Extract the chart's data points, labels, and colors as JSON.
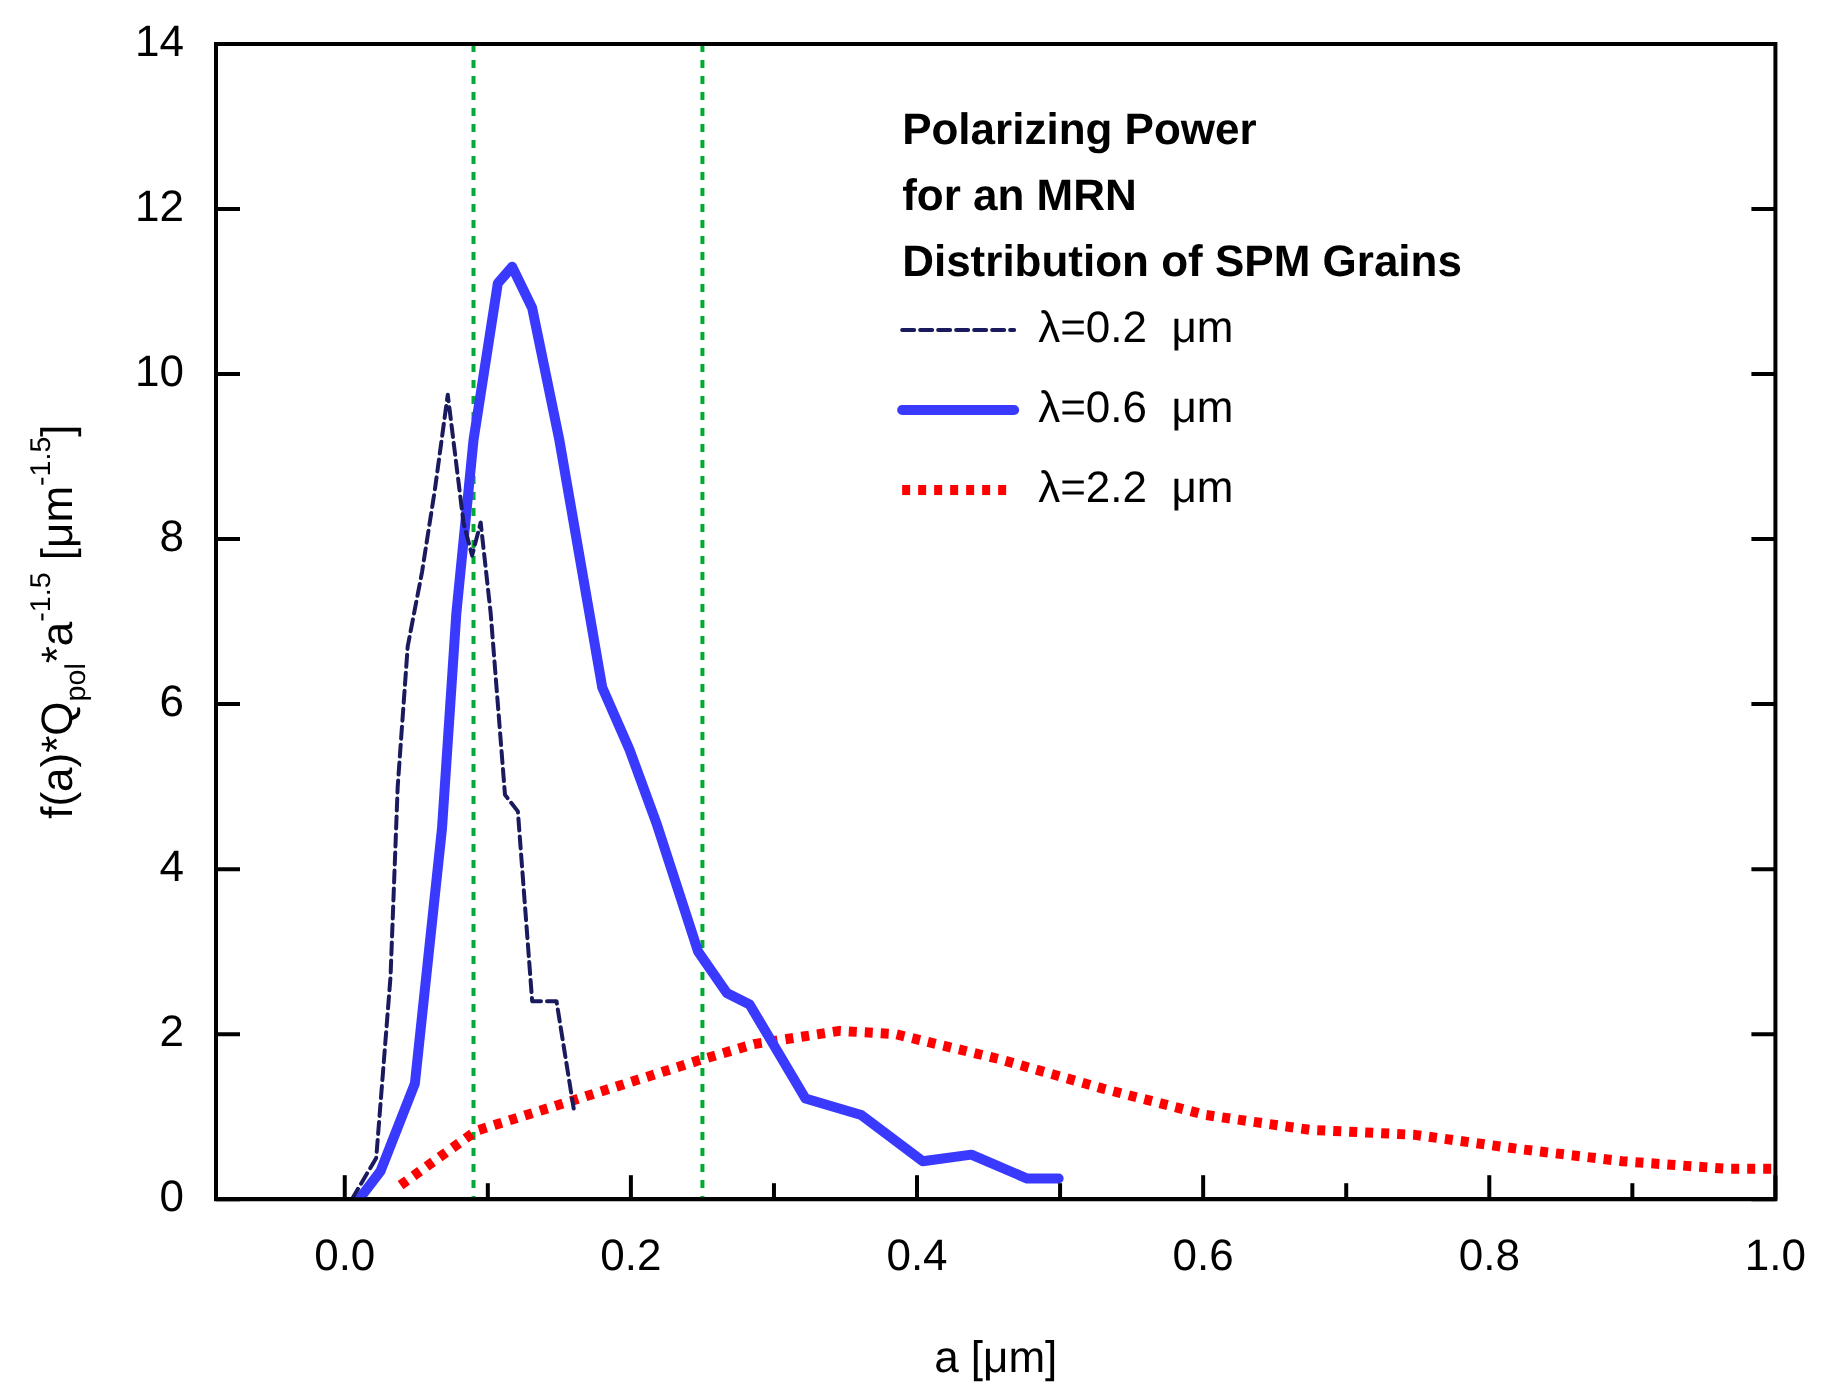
{
  "chart_data": {
    "type": "line",
    "xlabel": "a [μm]",
    "ylabel": "f(a)*Q$_{pol}$*a$^{-1.5}$ [μm$^{-1.5}$]",
    "legend_title": "Polarizing Power\nfor an MRN\nDistribution of SPM Grains",
    "legend": "top right",
    "grid": false,
    "marker": "none",
    "xlim": [
      -0.09,
      1.0
    ],
    "ylim": [
      0,
      14
    ],
    "xticks": [
      {
        "value": 0,
        "label": "0.0"
      },
      {
        "value": 0.1,
        "label": null
      },
      0.2,
      {
        "value": 0.3,
        "label": null
      },
      0.4,
      {
        "value": 0.5,
        "label": null
      },
      0.6,
      {
        "value": 0.7,
        "label": null
      },
      0.8,
      {
        "value": 0.9,
        "label": null
      },
      {
        "value": 1.0,
        "label": "1.0"
      }
    ],
    "yticks": [
      0,
      2,
      4,
      6,
      8,
      10,
      12,
      14
    ],
    "ref_lines": [
      {
        "axis": "x",
        "value": 0.09,
        "color": "#00aa33",
        "line_style": "dotted"
      },
      {
        "axis": "x",
        "value": 0.25,
        "color": "#00aa33",
        "line_style": "dotted"
      }
    ],
    "series": [
      {
        "name": "λ=0.2  μm",
        "color": "#1a1a5e",
        "line_style": "dashed",
        "x": [
          0.005,
          0.022,
          0.032,
          0.037,
          0.044,
          0.054,
          0.063,
          0.072,
          0.083,
          0.089,
          0.095,
          0.102,
          0.112,
          0.121,
          0.131,
          0.138,
          0.148,
          0.16
        ],
        "values": [
          0,
          0.5,
          2.7,
          5.0,
          6.7,
          7.6,
          8.6,
          9.75,
          8.2,
          7.8,
          8.2,
          7.1,
          4.9,
          4.7,
          2.4,
          2.4,
          2.4,
          1.1
        ]
      },
      {
        "name": "λ=0.6  μm",
        "color": "#3a3aff",
        "line_style": "solid",
        "x": [
          0.01,
          0.025,
          0.049,
          0.068,
          0.078,
          0.09,
          0.107,
          0.117,
          0.131,
          0.15,
          0.165,
          0.18,
          0.199,
          0.218,
          0.247,
          0.267,
          0.283,
          0.322,
          0.361,
          0.404,
          0.438,
          0.477,
          0.499
        ],
        "values": [
          0,
          0.34,
          1.4,
          4.5,
          7.1,
          9.2,
          11.1,
          11.3,
          10.8,
          9.2,
          7.7,
          6.2,
          5.45,
          4.55,
          3.0,
          2.5,
          2.36,
          1.22,
          1.02,
          0.46,
          0.54,
          0.25,
          0.25
        ]
      },
      {
        "name": "λ=2.2  μm",
        "color": "#ff0000",
        "line_style": "dotted",
        "x": [
          0.039,
          0.092,
          0.16,
          0.247,
          0.286,
          0.346,
          0.385,
          0.457,
          0.53,
          0.602,
          0.675,
          0.748,
          0.82,
          0.893,
          0.965,
          1.0
        ],
        "values": [
          0.17,
          0.83,
          1.2,
          1.68,
          1.88,
          2.04,
          2.0,
          1.7,
          1.34,
          1.02,
          0.84,
          0.78,
          0.61,
          0.46,
          0.37,
          0.37
        ]
      }
    ]
  }
}
